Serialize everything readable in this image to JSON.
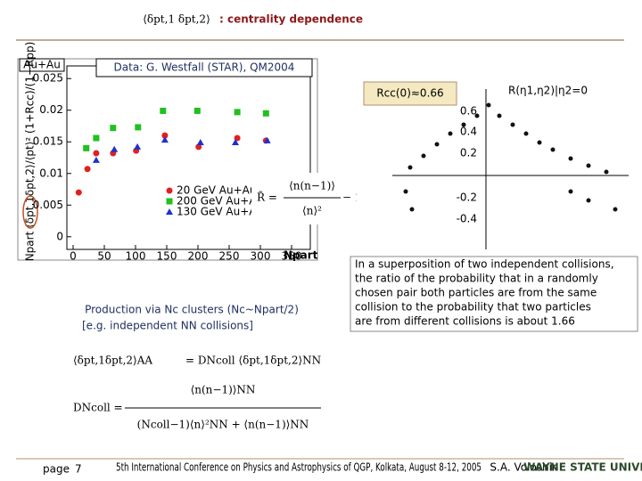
{
  "header": {
    "formula": "⟨δpt,1 δpt,2⟩",
    "title": ": centrality dependence"
  },
  "chart_data": {
    "type": "scatter",
    "source": "Data: G. Westfall (STAR), QM2004",
    "corner_label": "Au+Au",
    "x_label": "Npart",
    "y_label": "Npart ⟨δpt,1δpt,2⟩/⟨pt⟩² (1+Rcc)/(1+Rpp)",
    "xlim": [
      -10,
      380
    ],
    "xticks": [
      0,
      50,
      100,
      150,
      200,
      250,
      300,
      350
    ],
    "ylim": [
      -0.002,
      0.027
    ],
    "yticks": [
      0,
      0.005,
      0.01,
      0.015,
      0.02,
      0.025
    ],
    "series": [
      {
        "name": "20 GeV Au+Au",
        "color": "#e02020",
        "marker": "circle",
        "x": [
          9,
          23,
          37,
          64,
          101,
          147,
          201,
          263,
          309
        ],
        "values": [
          0.007,
          0.0107,
          0.0132,
          0.0132,
          0.0136,
          0.016,
          0.0142,
          0.0156,
          0.0152
        ]
      },
      {
        "name": "200 GeV Au+Au",
        "color": "#20c020",
        "marker": "square",
        "x": [
          21,
          37,
          64,
          104,
          144,
          199,
          263,
          309
        ],
        "values": [
          0.014,
          0.0156,
          0.0172,
          0.0173,
          0.0199,
          0.0199,
          0.0197,
          0.0195
        ]
      },
      {
        "name": "130 GeV Au+Au",
        "color": "#2030d0",
        "marker": "triangle",
        "x": [
          37,
          66,
          103,
          147,
          204,
          260,
          311
        ],
        "values": [
          0.0121,
          0.0138,
          0.0142,
          0.0153,
          0.0149,
          0.0149,
          0.0152
        ]
      }
    ]
  },
  "r_formula": {
    "lhs": "R̃ =",
    "numerator": "⟨n(n−1)⟩",
    "denominator": "⟨n⟩²",
    "tail": "− 1"
  },
  "right_plot": {
    "label": "Rcc(0)≈0.66",
    "axis_title": "R(η1,η2)|η2=0",
    "tick_labels": [
      "0.6",
      "0.4",
      "0.2",
      "-0.2",
      "-0.4"
    ]
  },
  "production": {
    "line1": "Production via Nc clusters (Nc~Npart/2)",
    "line2": "[e.g. independent NN collisions]"
  },
  "equations": {
    "eq1_lhs": "⟨δpt,1δpt,2⟩AA",
    "eq1_rhs": "= DNcoll ⟨δpt,1δpt,2⟩NN",
    "eq2_lhs": "DNcoll =",
    "eq2_num": "⟨n(n−1)⟩NN",
    "eq2_den": "(Ncoll−1)⟨n⟩²NN + ⟨n(n−1)⟩NN"
  },
  "note": {
    "lines": [
      "In a superposition of two independent collisions,",
      "the ratio of the probability that in a randomly",
      "chosen pair both particles are from the same",
      "collision to the probability that two particles",
      "are from different collisions is about 1.66"
    ]
  },
  "footer": {
    "page_label": "page",
    "page_number": "7",
    "conference": "5th International Conference on Physics and Astrophysics of QGP, Kolkata, August 8-12, 2005",
    "author": "S.A. Voloshin",
    "logo": "WAYNE STATE UNIVERSITY"
  }
}
